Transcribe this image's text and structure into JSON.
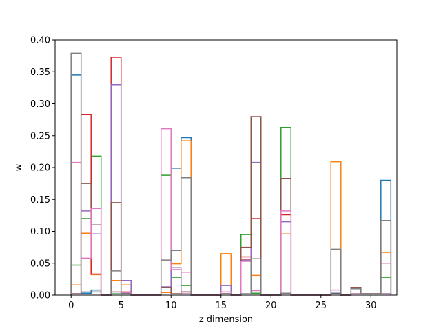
{
  "chart_data": {
    "type": "step",
    "title": "",
    "xlabel": "z dimension",
    "ylabel": "w",
    "xlim": [
      -1.6,
      32.6
    ],
    "ylim": [
      0,
      0.4
    ],
    "xticks": [
      0,
      5,
      10,
      15,
      20,
      25,
      30
    ],
    "xtick_labels": [
      "0",
      "5",
      "10",
      "15",
      "20",
      "25",
      "30"
    ],
    "yticks": [
      0.0,
      0.05,
      0.1,
      0.15,
      0.2,
      0.25,
      0.3,
      0.35,
      0.4
    ],
    "ytick_labels": [
      "0.00",
      "0.05",
      "0.10",
      "0.15",
      "0.20",
      "0.25",
      "0.30",
      "0.35",
      "0.40"
    ],
    "x": [
      0,
      1,
      2,
      3,
      4,
      5,
      6,
      7,
      8,
      9,
      10,
      11,
      12,
      13,
      14,
      15,
      16,
      17,
      18,
      19,
      20,
      21,
      22,
      23,
      24,
      25,
      26,
      27,
      28,
      29,
      30,
      31
    ],
    "series": [
      {
        "name": "blue",
        "color": "#1f77b4",
        "values": [
          0.345,
          0.003,
          0.008,
          0,
          0.005,
          0.003,
          0,
          0,
          0,
          0.012,
          0.199,
          0.247,
          0,
          0,
          0,
          0.002,
          0,
          0.002,
          0.003,
          0,
          0,
          0.002,
          0,
          0,
          0,
          0,
          0.003,
          0,
          0.002,
          0.002,
          0.002,
          0.18
        ]
      },
      {
        "name": "orange",
        "color": "#ff7f0e",
        "values": [
          0.016,
          0.097,
          0.032,
          0,
          0.023,
          0.016,
          0,
          0,
          0,
          0.004,
          0.049,
          0.242,
          0,
          0,
          0,
          0.065,
          0,
          0.056,
          0.031,
          0,
          0,
          0.096,
          0,
          0,
          0,
          0,
          0.209,
          0,
          0.002,
          0.002,
          0.002,
          0.067
        ]
      },
      {
        "name": "green",
        "color": "#2ca02c",
        "values": [
          0.047,
          0.12,
          0.218,
          0,
          0.002,
          0.002,
          0,
          0,
          0,
          0.188,
          0.028,
          0.015,
          0,
          0,
          0,
          0.002,
          0,
          0.095,
          0.003,
          0,
          0,
          0.263,
          0,
          0,
          0,
          0,
          0.002,
          0,
          0.002,
          0.002,
          0.002,
          0.028
        ]
      },
      {
        "name": "red",
        "color": "#d62728",
        "values": [
          0.002,
          0.283,
          0.033,
          0,
          0.373,
          0.005,
          0,
          0,
          0,
          0.012,
          0.002,
          0.005,
          0,
          0,
          0,
          0.002,
          0,
          0.06,
          0.12,
          0,
          0,
          0.126,
          0,
          0,
          0,
          0,
          0.002,
          0,
          0.012,
          0.002,
          0.002,
          0.002
        ]
      },
      {
        "name": "purple",
        "color": "#9467bd",
        "values": [
          0.002,
          0.132,
          0.096,
          0,
          0.33,
          0.023,
          0,
          0,
          0,
          0.013,
          0.043,
          0.002,
          0,
          0,
          0,
          0.015,
          0,
          0.055,
          0.208,
          0,
          0,
          0.115,
          0,
          0,
          0,
          0,
          0.002,
          0,
          0.002,
          0.002,
          0.002,
          0.002
        ]
      },
      {
        "name": "brown",
        "color": "#8c564b",
        "values": [
          0.002,
          0.175,
          0.11,
          0,
          0.145,
          0.002,
          0,
          0,
          0,
          0.012,
          0.002,
          0.005,
          0,
          0,
          0,
          0.002,
          0,
          0.075,
          0.28,
          0,
          0,
          0.183,
          0,
          0,
          0,
          0,
          0.002,
          0,
          0.012,
          0.002,
          0.002,
          0.117
        ]
      },
      {
        "name": "pink",
        "color": "#e377c2",
        "values": [
          0.208,
          0.058,
          0.136,
          0,
          0.005,
          0.004,
          0,
          0,
          0,
          0.261,
          0.04,
          0.036,
          0,
          0,
          0,
          0.005,
          0,
          0.053,
          0.007,
          0,
          0,
          0.132,
          0,
          0,
          0,
          0,
          0.008,
          0,
          0.002,
          0.002,
          0.002,
          0.05
        ]
      },
      {
        "name": "gray",
        "color": "#7f7f7f",
        "values": [
          0.379,
          0.005,
          0.005,
          0,
          0.038,
          0.002,
          0,
          0,
          0,
          0.055,
          0.07,
          0.184,
          0,
          0,
          0,
          0.002,
          0,
          0.002,
          0.057,
          0,
          0,
          0.003,
          0,
          0,
          0,
          0,
          0.072,
          0,
          0.01,
          0.002,
          0.002,
          0.117
        ]
      }
    ]
  }
}
